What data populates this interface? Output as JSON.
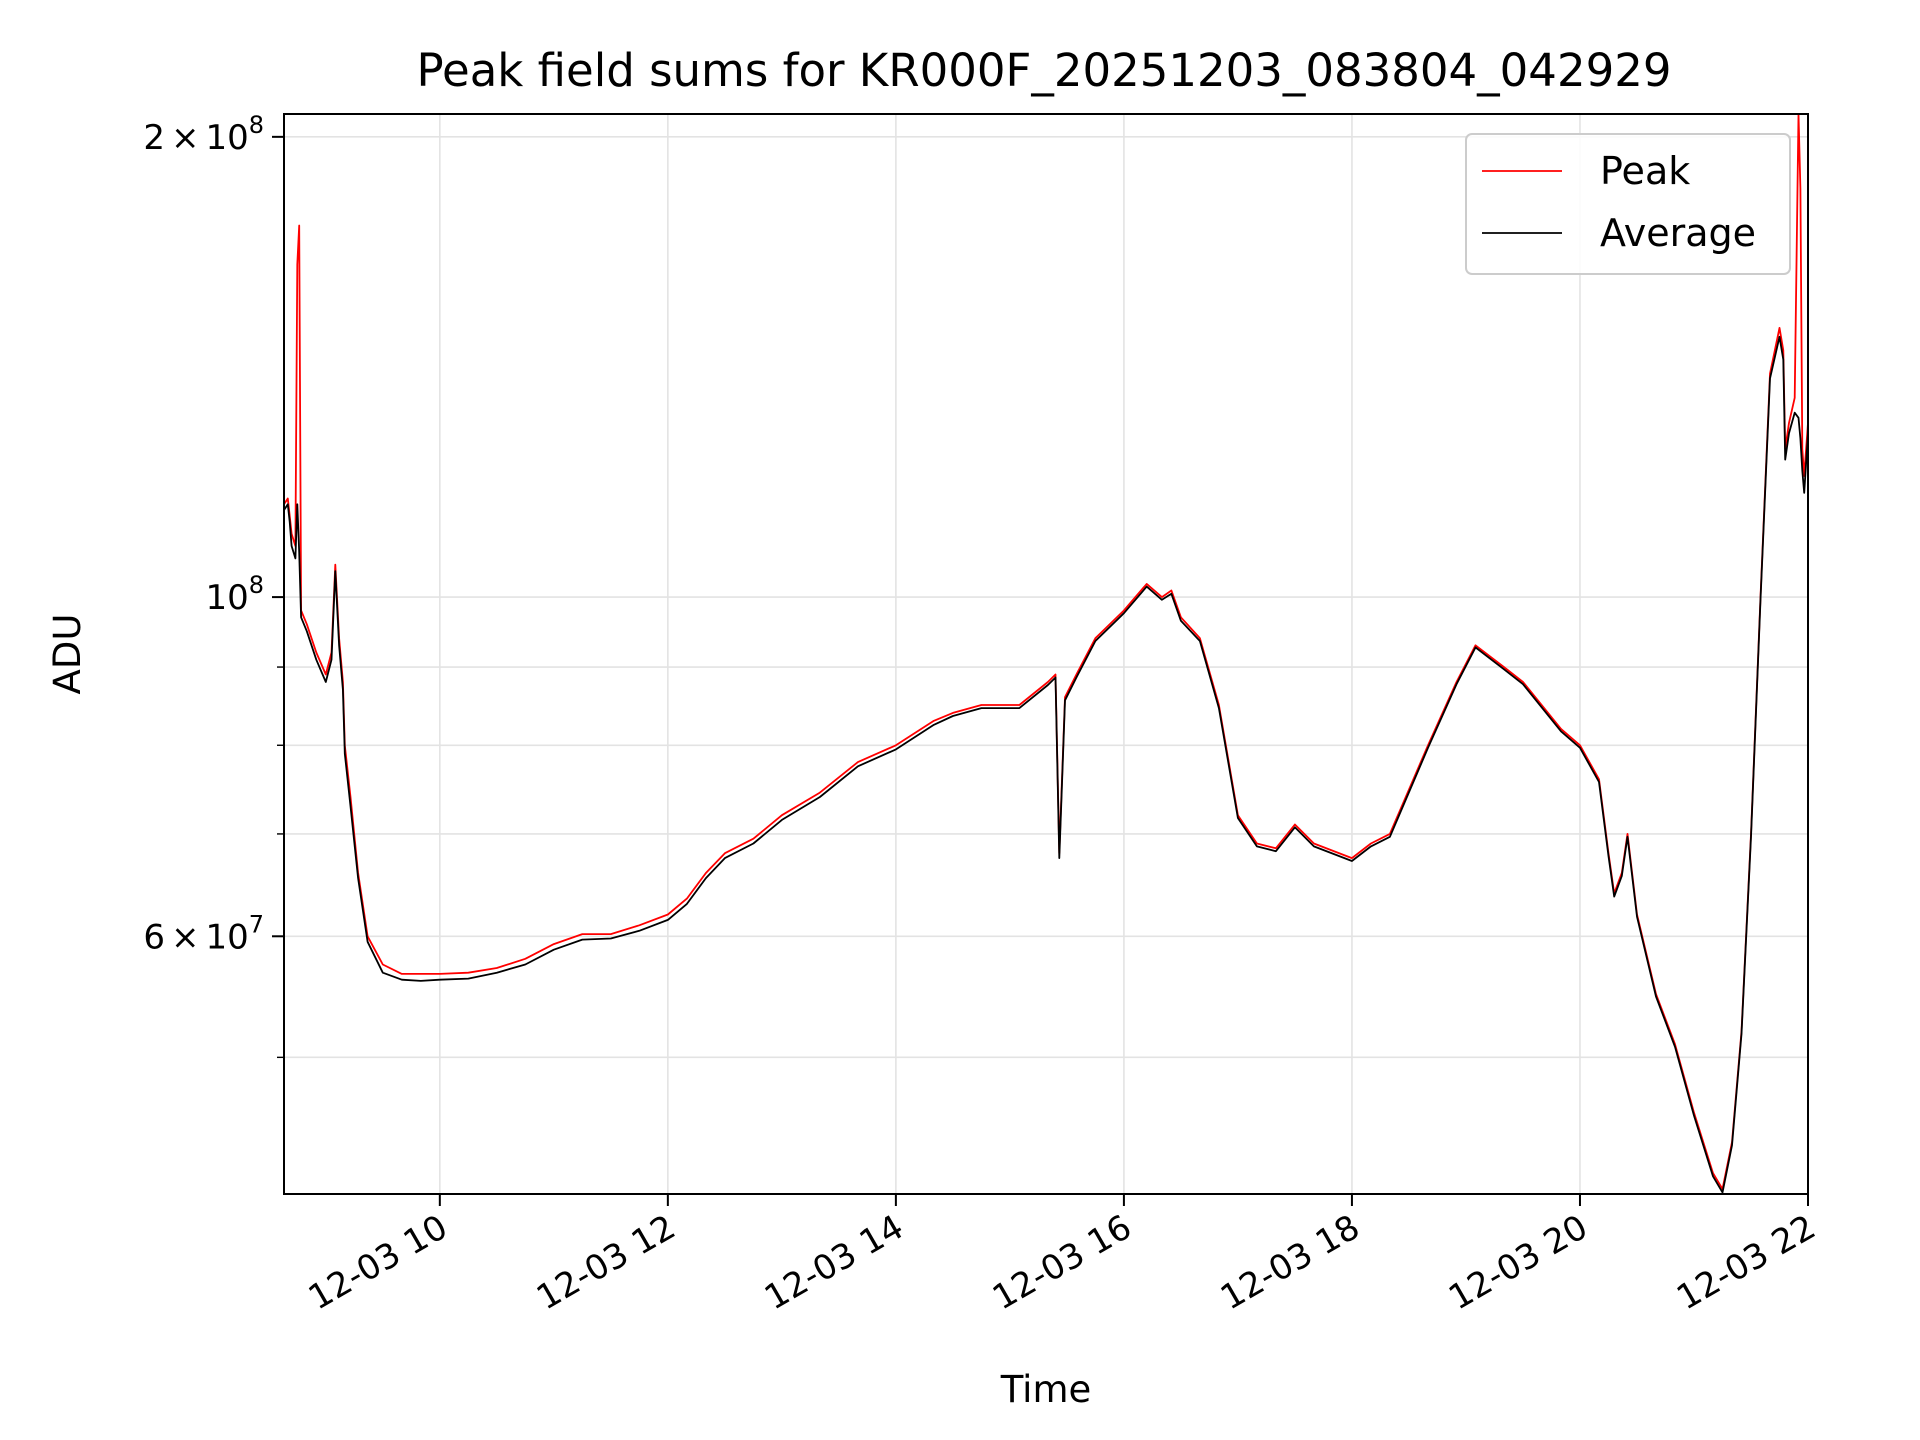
{
  "chart_data": {
    "type": "line",
    "title": "Peak field sums for KR000F_20251203_083804_042929",
    "xlabel": "Time",
    "ylabel": "ADU",
    "yscale": "log",
    "xlim": [
      "12-03 08:38",
      "12-03 22:00"
    ],
    "ylim": [
      40700000,
      207000000
    ],
    "grid": true,
    "legend_position": "upper right",
    "x_ticks": [
      {
        "value": "12-03 10:00",
        "label": "12-03 10"
      },
      {
        "value": "12-03 12:00",
        "label": "12-03 12"
      },
      {
        "value": "12-03 14:00",
        "label": "12-03 14"
      },
      {
        "value": "12-03 16:00",
        "label": "12-03 16"
      },
      {
        "value": "12-03 18:00",
        "label": "12-03 18"
      },
      {
        "value": "12-03 20:00",
        "label": "12-03 20"
      },
      {
        "value": "12-03 22:00",
        "label": "12-03 22"
      }
    ],
    "y_major_ticks": [
      {
        "value": 60000000,
        "mantissa": "6",
        "exponent": "7"
      },
      {
        "value": 100000000,
        "mantissa": "",
        "exponent": "8"
      },
      {
        "value": 200000000,
        "mantissa": "2",
        "exponent": "8"
      }
    ],
    "y_minor_ticks": [
      50000000,
      70000000,
      80000000,
      90000000
    ],
    "series": [
      {
        "name": "Peak",
        "color": "#ff0000",
        "points": [
          [
            "12-03 08:38",
            115000000
          ],
          [
            "12-03 08:40",
            116000000
          ],
          [
            "12-03 08:41",
            113000000
          ],
          [
            "12-03 08:42",
            110000000
          ],
          [
            "12-03 08:44",
            108000000
          ],
          [
            "12-03 08:45",
            165000000
          ],
          [
            "12-03 08:46",
            175000000
          ],
          [
            "12-03 08:47",
            98000000
          ],
          [
            "12-03 08:50",
            96000000
          ],
          [
            "12-03 08:55",
            92000000
          ],
          [
            "12-03 09:00",
            89000000
          ],
          [
            "12-03 09:03",
            92000000
          ],
          [
            "12-03 09:05",
            105000000
          ],
          [
            "12-03 09:07",
            94000000
          ],
          [
            "12-03 09:09",
            88000000
          ],
          [
            "12-03 09:10",
            80000000
          ],
          [
            "12-03 09:13",
            74000000
          ],
          [
            "12-03 09:17",
            66000000
          ],
          [
            "12-03 09:22",
            60000000
          ],
          [
            "12-03 09:30",
            57500000
          ],
          [
            "12-03 09:40",
            56700000
          ],
          [
            "12-03 09:50",
            56700000
          ],
          [
            "12-03 10:00",
            56700000
          ],
          [
            "12-03 10:15",
            56800000
          ],
          [
            "12-03 10:30",
            57200000
          ],
          [
            "12-03 10:45",
            58000000
          ],
          [
            "12-03 11:00",
            59300000
          ],
          [
            "12-03 11:15",
            60200000
          ],
          [
            "12-03 11:30",
            60200000
          ],
          [
            "12-03 11:45",
            61000000
          ],
          [
            "12-03 12:00",
            62000000
          ],
          [
            "12-03 12:10",
            63500000
          ],
          [
            "12-03 12:20",
            66000000
          ],
          [
            "12-03 12:30",
            68000000
          ],
          [
            "12-03 12:45",
            69500000
          ],
          [
            "12-03 13:00",
            72000000
          ],
          [
            "12-03 13:20",
            74500000
          ],
          [
            "12-03 13:40",
            78000000
          ],
          [
            "12-03 14:00",
            80000000
          ],
          [
            "12-03 14:20",
            83000000
          ],
          [
            "12-03 14:30",
            84000000
          ],
          [
            "12-03 14:45",
            85000000
          ],
          [
            "12-03 15:05",
            85000000
          ],
          [
            "12-03 15:20",
            88000000
          ],
          [
            "12-03 15:24",
            89000000
          ],
          [
            "12-03 15:26",
            68000000
          ],
          [
            "12-03 15:29",
            86000000
          ],
          [
            "12-03 15:35",
            89000000
          ],
          [
            "12-03 15:45",
            94000000
          ],
          [
            "12-03 16:00",
            98000000
          ],
          [
            "12-03 16:12",
            102000000
          ],
          [
            "12-03 16:20",
            100000000
          ],
          [
            "12-03 16:25",
            101000000
          ],
          [
            "12-03 16:30",
            97000000
          ],
          [
            "12-03 16:40",
            94000000
          ],
          [
            "12-03 16:50",
            85000000
          ],
          [
            "12-03 17:00",
            72000000
          ],
          [
            "12-03 17:10",
            69000000
          ],
          [
            "12-03 17:20",
            68500000
          ],
          [
            "12-03 17:30",
            71000000
          ],
          [
            "12-03 17:40",
            69000000
          ],
          [
            "12-03 18:00",
            67500000
          ],
          [
            "12-03 18:10",
            69000000
          ],
          [
            "12-03 18:20",
            70000000
          ],
          [
            "12-03 18:40",
            80000000
          ],
          [
            "12-03 18:55",
            88000000
          ],
          [
            "12-03 19:05",
            93000000
          ],
          [
            "12-03 19:20",
            90000000
          ],
          [
            "12-03 19:30",
            88000000
          ],
          [
            "12-03 19:50",
            82000000
          ],
          [
            "12-03 20:00",
            80000000
          ],
          [
            "12-03 20:10",
            76000000
          ],
          [
            "12-03 20:15",
            68000000
          ],
          [
            "12-03 20:18",
            64000000
          ],
          [
            "12-03 20:22",
            66000000
          ],
          [
            "12-03 20:25",
            70000000
          ],
          [
            "12-03 20:30",
            62000000
          ],
          [
            "12-03 20:40",
            55000000
          ],
          [
            "12-03 20:50",
            51000000
          ],
          [
            "12-03 21:00",
            46000000
          ],
          [
            "12-03 21:10",
            42000000
          ],
          [
            "12-03 21:15",
            41000000
          ],
          [
            "12-03 21:20",
            44000000
          ],
          [
            "12-03 21:25",
            52000000
          ],
          [
            "12-03 21:30",
            70000000
          ],
          [
            "12-03 21:35",
            100000000
          ],
          [
            "12-03 21:40",
            140000000
          ],
          [
            "12-03 21:45",
            150000000
          ],
          [
            "12-03 21:47",
            145000000
          ],
          [
            "12-03 21:48",
            125000000
          ],
          [
            "12-03 21:50",
            130000000
          ],
          [
            "12-03 21:53",
            135000000
          ],
          [
            "12-03 21:55",
            207000000
          ],
          [
            "12-03 21:56",
            185000000
          ],
          [
            "12-03 21:57",
            125000000
          ],
          [
            "12-03 21:58",
            120000000
          ],
          [
            "12-03 22:00",
            130000000
          ]
        ]
      },
      {
        "name": "Average",
        "color": "#000000",
        "points": [
          [
            "12-03 08:38",
            114000000
          ],
          [
            "12-03 08:40",
            115000000
          ],
          [
            "12-03 08:41",
            112000000
          ],
          [
            "12-03 08:42",
            108000000
          ],
          [
            "12-03 08:44",
            106000000
          ],
          [
            "12-03 08:45",
            115000000
          ],
          [
            "12-03 08:46",
            107000000
          ],
          [
            "12-03 08:47",
            97000000
          ],
          [
            "12-03 08:50",
            95000000
          ],
          [
            "12-03 08:55",
            91000000
          ],
          [
            "12-03 09:00",
            88000000
          ],
          [
            "12-03 09:03",
            91000000
          ],
          [
            "12-03 09:05",
            104000000
          ],
          [
            "12-03 09:07",
            93000000
          ],
          [
            "12-03 09:09",
            87000000
          ],
          [
            "12-03 09:10",
            79000000
          ],
          [
            "12-03 09:13",
            73000000
          ],
          [
            "12-03 09:17",
            65500000
          ],
          [
            "12-03 09:22",
            59500000
          ],
          [
            "12-03 09:30",
            56800000
          ],
          [
            "12-03 09:40",
            56200000
          ],
          [
            "12-03 09:50",
            56100000
          ],
          [
            "12-03 10:00",
            56200000
          ],
          [
            "12-03 10:15",
            56300000
          ],
          [
            "12-03 10:30",
            56800000
          ],
          [
            "12-03 10:45",
            57500000
          ],
          [
            "12-03 11:00",
            58800000
          ],
          [
            "12-03 11:15",
            59700000
          ],
          [
            "12-03 11:30",
            59800000
          ],
          [
            "12-03 11:45",
            60500000
          ],
          [
            "12-03 12:00",
            61500000
          ],
          [
            "12-03 12:10",
            63000000
          ],
          [
            "12-03 12:20",
            65500000
          ],
          [
            "12-03 12:30",
            67500000
          ],
          [
            "12-03 12:45",
            69000000
          ],
          [
            "12-03 13:00",
            71500000
          ],
          [
            "12-03 13:20",
            74000000
          ],
          [
            "12-03 13:40",
            77500000
          ],
          [
            "12-03 14:00",
            79500000
          ],
          [
            "12-03 14:20",
            82500000
          ],
          [
            "12-03 14:30",
            83600000
          ],
          [
            "12-03 14:45",
            84600000
          ],
          [
            "12-03 15:05",
            84600000
          ],
          [
            "12-03 15:20",
            87600000
          ],
          [
            "12-03 15:24",
            88600000
          ],
          [
            "12-03 15:26",
            67500000
          ],
          [
            "12-03 15:29",
            85600000
          ],
          [
            "12-03 15:35",
            88600000
          ],
          [
            "12-03 15:45",
            93600000
          ],
          [
            "12-03 16:00",
            97600000
          ],
          [
            "12-03 16:12",
            101600000
          ],
          [
            "12-03 16:20",
            99600000
          ],
          [
            "12-03 16:25",
            100500000
          ],
          [
            "12-03 16:30",
            96500000
          ],
          [
            "12-03 16:40",
            93600000
          ],
          [
            "12-03 16:50",
            84600000
          ],
          [
            "12-03 17:00",
            71700000
          ],
          [
            "12-03 17:10",
            68700000
          ],
          [
            "12-03 17:20",
            68200000
          ],
          [
            "12-03 17:30",
            70700000
          ],
          [
            "12-03 17:40",
            68700000
          ],
          [
            "12-03 18:00",
            67200000
          ],
          [
            "12-03 18:10",
            68700000
          ],
          [
            "12-03 18:20",
            69700000
          ],
          [
            "12-03 18:40",
            79700000
          ],
          [
            "12-03 18:55",
            87700000
          ],
          [
            "12-03 19:05",
            92700000
          ],
          [
            "12-03 19:20",
            89700000
          ],
          [
            "12-03 19:30",
            87700000
          ],
          [
            "12-03 19:50",
            81700000
          ],
          [
            "12-03 20:00",
            79700000
          ],
          [
            "12-03 20:10",
            75700000
          ],
          [
            "12-03 20:15",
            67700000
          ],
          [
            "12-03 20:18",
            63700000
          ],
          [
            "12-03 20:22",
            65700000
          ],
          [
            "12-03 20:25",
            69700000
          ],
          [
            "12-03 20:30",
            61800000
          ],
          [
            "12-03 20:40",
            54800000
          ],
          [
            "12-03 20:50",
            50800000
          ],
          [
            "12-03 21:00",
            45800000
          ],
          [
            "12-03 21:10",
            41800000
          ],
          [
            "12-03 21:15",
            40800000
          ],
          [
            "12-03 21:20",
            43800000
          ],
          [
            "12-03 21:25",
            51800000
          ],
          [
            "12-03 21:30",
            69700000
          ],
          [
            "12-03 21:35",
            99600000
          ],
          [
            "12-03 21:40",
            139000000
          ],
          [
            "12-03 21:45",
            148000000
          ],
          [
            "12-03 21:47",
            143000000
          ],
          [
            "12-03 21:48",
            123000000
          ],
          [
            "12-03 21:50",
            128000000
          ],
          [
            "12-03 21:53",
            132000000
          ],
          [
            "12-03 21:55",
            131000000
          ],
          [
            "12-03 21:56",
            127000000
          ],
          [
            "12-03 21:57",
            121000000
          ],
          [
            "12-03 21:58",
            117000000
          ],
          [
            "12-03 22:00",
            128000000
          ]
        ]
      }
    ]
  }
}
